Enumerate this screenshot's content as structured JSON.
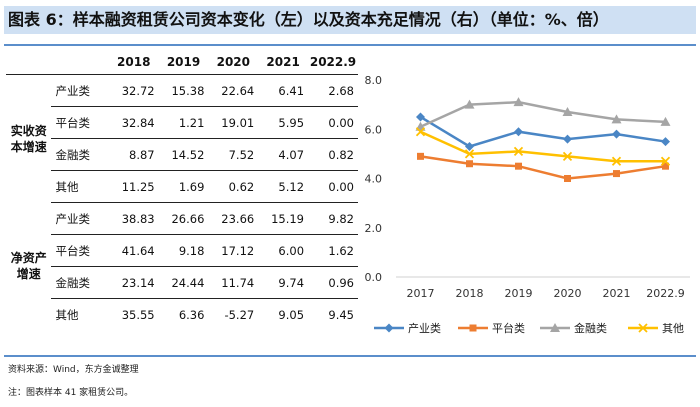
{
  "title": "图表 6：样本融资租赁公司资本变化（左）以及资本充足情况（右）（单位：%、倍）",
  "table": {
    "columns": [
      "2018",
      "2019",
      "2020",
      "2021",
      "2022.9"
    ],
    "groups": [
      {
        "label_line1": "实收资",
        "label_line2": "本增速",
        "rows": [
          {
            "name": "产业类",
            "values": [
              "32.72",
              "15.38",
              "22.64",
              "6.41",
              "2.68"
            ]
          },
          {
            "name": "平台类",
            "values": [
              "32.84",
              "1.21",
              "19.01",
              "5.95",
              "0.00"
            ]
          },
          {
            "name": "金融类",
            "values": [
              "8.87",
              "14.52",
              "7.52",
              "4.07",
              "0.82"
            ]
          },
          {
            "name": "其他",
            "values": [
              "11.25",
              "1.69",
              "0.62",
              "5.12",
              "0.00"
            ]
          }
        ]
      },
      {
        "label_line1": "净资产",
        "label_line2": "增速",
        "rows": [
          {
            "name": "产业类",
            "values": [
              "38.83",
              "26.66",
              "23.66",
              "15.19",
              "9.82"
            ]
          },
          {
            "name": "平台类",
            "values": [
              "41.64",
              "9.18",
              "17.12",
              "6.00",
              "1.62"
            ]
          },
          {
            "name": "金融类",
            "values": [
              "23.14",
              "24.44",
              "11.74",
              "9.74",
              "0.96"
            ]
          },
          {
            "name": "其他",
            "values": [
              "35.55",
              "6.36",
              "-5.27",
              "9.05",
              "9.45"
            ]
          }
        ]
      }
    ]
  },
  "chart_data": {
    "type": "line",
    "x": [
      "2017",
      "2018",
      "2019",
      "2020",
      "2021",
      "2022.9"
    ],
    "ylim": [
      0,
      8
    ],
    "yticks": [
      "0.0",
      "2.0",
      "4.0",
      "6.0",
      "8.0"
    ],
    "yticks_values": [
      0,
      2,
      4,
      6,
      8
    ],
    "grid": false,
    "legend_position": "bottom",
    "series": [
      {
        "name": "产业类",
        "color": "#4a86c5",
        "marker": "diamond",
        "values": [
          6.5,
          5.3,
          5.9,
          5.6,
          5.8,
          5.5
        ]
      },
      {
        "name": "平台类",
        "color": "#ed7d31",
        "marker": "square",
        "values": [
          4.9,
          4.6,
          4.5,
          4.0,
          4.2,
          4.5
        ]
      },
      {
        "name": "金融类",
        "color": "#a5a5a5",
        "marker": "triangle",
        "values": [
          6.1,
          7.0,
          7.1,
          6.7,
          6.4,
          6.3
        ]
      },
      {
        "name": "其他",
        "color": "#ffc000",
        "marker": "x",
        "values": [
          5.9,
          5.0,
          5.1,
          4.9,
          4.7,
          4.7
        ]
      }
    ]
  },
  "footnotes": {
    "source": "资料来源：Wind，东方金诚整理",
    "note": "注：图表样本 41 家租赁公司。"
  }
}
